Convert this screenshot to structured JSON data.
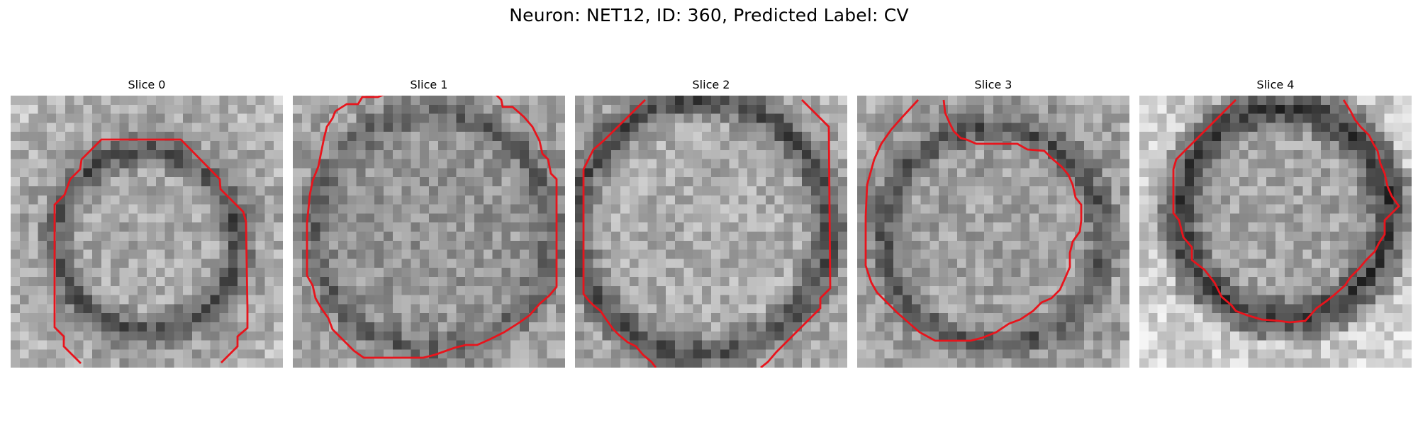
{
  "figure": {
    "title": "Neuron: NET12, ID: 360, Predicted Label: CV"
  },
  "contour_color": "#e8141c",
  "slices": [
    {
      "title": "Slice 0"
    },
    {
      "title": "Slice 1"
    },
    {
      "title": "Slice 2"
    },
    {
      "title": "Slice 3"
    },
    {
      "title": "Slice 4"
    }
  ]
}
